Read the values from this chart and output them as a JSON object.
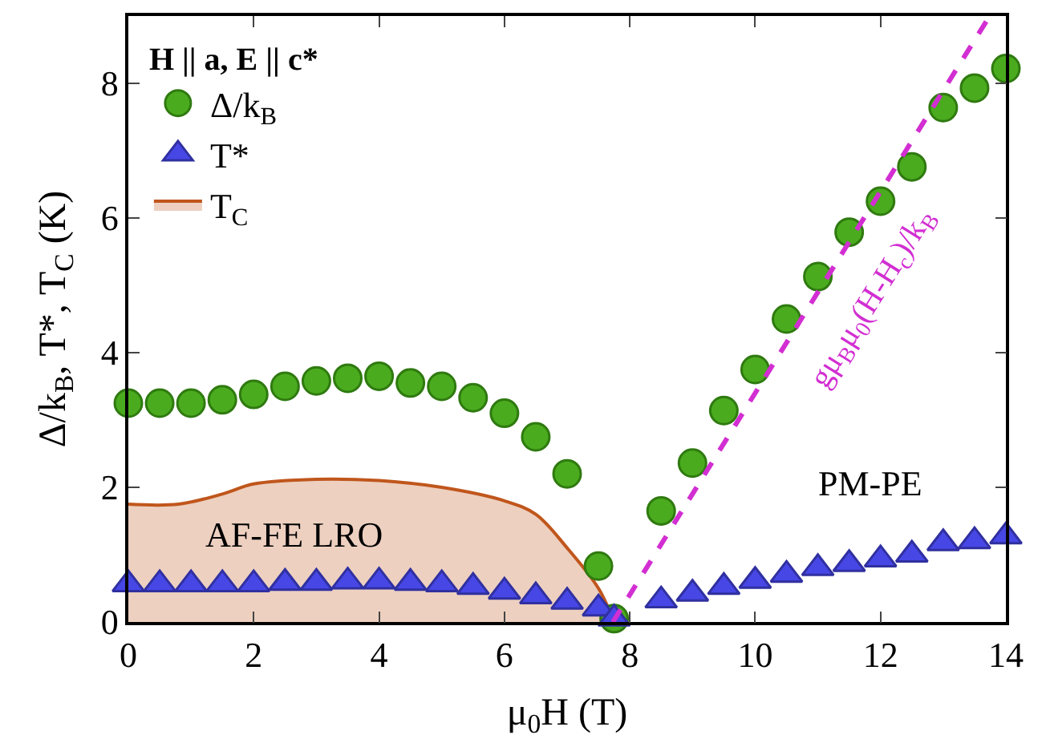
{
  "chart_data": {
    "type": "scatter",
    "xlabel": "μ$_{0}$H (T)",
    "ylabel": "Δ/k$_{B}$, T*, T$_{C}$ (K)",
    "xlim": [
      0,
      14
    ],
    "ylim": [
      0,
      9
    ],
    "xticks": [
      0,
      2,
      4,
      6,
      8,
      10,
      12,
      14
    ],
    "yticks": [
      0,
      2,
      4,
      6,
      8
    ],
    "legend": "top left",
    "legend_title": "H || a, E || c*",
    "series": [
      {
        "name": "Δ/k$_{B}$",
        "marker": "circle",
        "color": "#4aab1e",
        "x": [
          0,
          0.5,
          1,
          1.5,
          2,
          2.5,
          3,
          3.5,
          4,
          4.5,
          5,
          5.5,
          6,
          6.5,
          7,
          7.5,
          7.75,
          8.5,
          9,
          9.5,
          10,
          10.5,
          11,
          11.5,
          12,
          12.5,
          13,
          13.5,
          14
        ],
        "values": [
          3.25,
          3.25,
          3.25,
          3.3,
          3.38,
          3.5,
          3.58,
          3.62,
          3.65,
          3.55,
          3.5,
          3.33,
          3.1,
          2.75,
          2.2,
          0.83,
          0.05,
          1.65,
          2.36,
          3.14,
          3.75,
          4.5,
          5.13,
          5.79,
          6.25,
          6.76,
          7.64,
          7.93,
          8.22
        ]
      },
      {
        "name": "T*",
        "marker": "triangle",
        "color": "#4747e6",
        "x": [
          0,
          0.5,
          1,
          1.5,
          2,
          2.5,
          3,
          3.5,
          4,
          4.5,
          5,
          5.5,
          6,
          6.5,
          7,
          7.5,
          7.75,
          8.5,
          9,
          9.5,
          10,
          10.5,
          11,
          11.5,
          12,
          12.5,
          13,
          13.5,
          14
        ],
        "values": [
          0.56,
          0.56,
          0.56,
          0.56,
          0.56,
          0.58,
          0.58,
          0.6,
          0.6,
          0.58,
          0.56,
          0.52,
          0.45,
          0.38,
          0.3,
          0.2,
          0.05,
          0.32,
          0.42,
          0.52,
          0.61,
          0.7,
          0.8,
          0.86,
          0.93,
          1.0,
          1.17,
          1.2,
          1.27
        ]
      },
      {
        "name": "T$_{C}$",
        "type": "area",
        "color": "#c0561c",
        "x": [
          0,
          0.8,
          1.5,
          2,
          3,
          4,
          5,
          6,
          6.5,
          7,
          7.5,
          7.75
        ],
        "values": [
          1.75,
          1.75,
          1.9,
          2.05,
          2.12,
          2.1,
          2.0,
          1.8,
          1.6,
          1.1,
          0.5,
          0
        ]
      },
      {
        "name": null,
        "type": "line",
        "line_style": "dashed",
        "color": "#d22ed2",
        "x": [
          7.73,
          13.74
        ],
        "values": [
          0,
          9
        ]
      }
    ],
    "annotations": [
      "AF-FE LRO",
      "PM-PE",
      "gμ$_{B}$μ$_{0}$(H-H$_{c}$)/k$_{B}$"
    ]
  }
}
